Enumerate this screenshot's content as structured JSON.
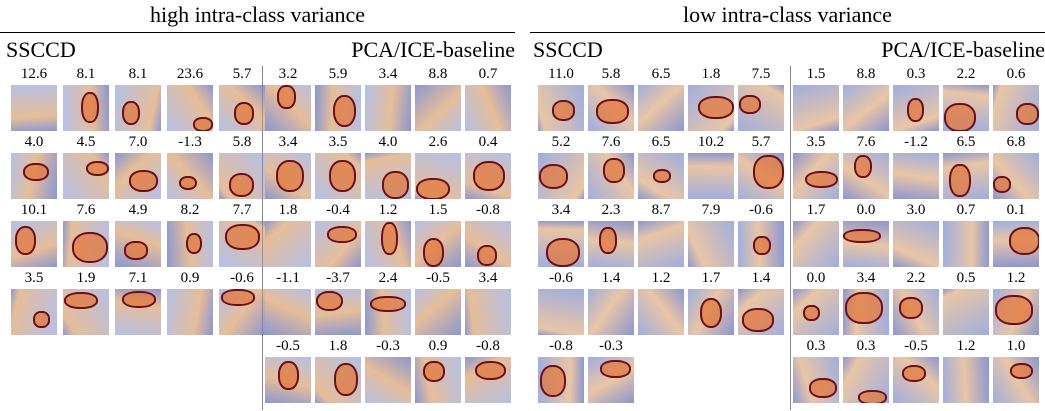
{
  "panels": [
    {
      "title": "high intra-class variance",
      "groups": [
        {
          "label": "SSCCD",
          "rows": [
            [
              "12.6",
              "8.1",
              "8.1",
              "23.6",
              "5.7"
            ],
            [
              "4.0",
              "4.5",
              "7.0",
              "-1.3",
              "5.8"
            ],
            [
              "10.1",
              "7.6",
              "4.9",
              "8.2",
              "7.7"
            ],
            [
              "3.5",
              "1.9",
              "7.1",
              "0.9",
              "-0.6"
            ]
          ]
        },
        {
          "label": "PCA/ICE-baseline",
          "rows": [
            [
              "3.2",
              "5.9",
              "3.4",
              "8.8",
              "0.7"
            ],
            [
              "3.4",
              "3.5",
              "4.0",
              "2.6",
              "0.4"
            ],
            [
              "1.8",
              "-0.4",
              "1.2",
              "1.5",
              "-0.8"
            ],
            [
              "-1.1",
              "-3.7",
              "2.4",
              "-0.5",
              "3.4"
            ],
            [
              "-0.5",
              "1.8",
              "-0.3",
              "0.9",
              "-0.8"
            ]
          ]
        }
      ]
    },
    {
      "title": "low intra-class variance",
      "groups": [
        {
          "label": "SSCCD",
          "rows": [
            [
              "11.0",
              "5.8",
              "6.5",
              "1.8",
              "7.5"
            ],
            [
              "5.2",
              "7.6",
              "6.5",
              "10.2",
              "5.7"
            ],
            [
              "3.4",
              "2.3",
              "8.7",
              "7.9",
              "-0.6"
            ],
            [
              "-0.6",
              "1.4",
              "1.2",
              "1.7",
              "1.4"
            ],
            [
              "-0.8",
              "-0.3"
            ]
          ]
        },
        {
          "label": "PCA/ICE-baseline",
          "rows": [
            [
              "1.5",
              "8.8",
              "0.3",
              "2.2",
              "0.6"
            ],
            [
              "3.5",
              "7.6",
              "-1.2",
              "6.5",
              "6.8"
            ],
            [
              "1.7",
              "0.0",
              "3.0",
              "0.7",
              "0.1"
            ],
            [
              "0.0",
              "3.4",
              "2.2",
              "0.5",
              "1.2"
            ],
            [
              "0.3",
              "0.3",
              "-0.5",
              "1.2",
              "1.0"
            ]
          ]
        }
      ]
    }
  ]
}
